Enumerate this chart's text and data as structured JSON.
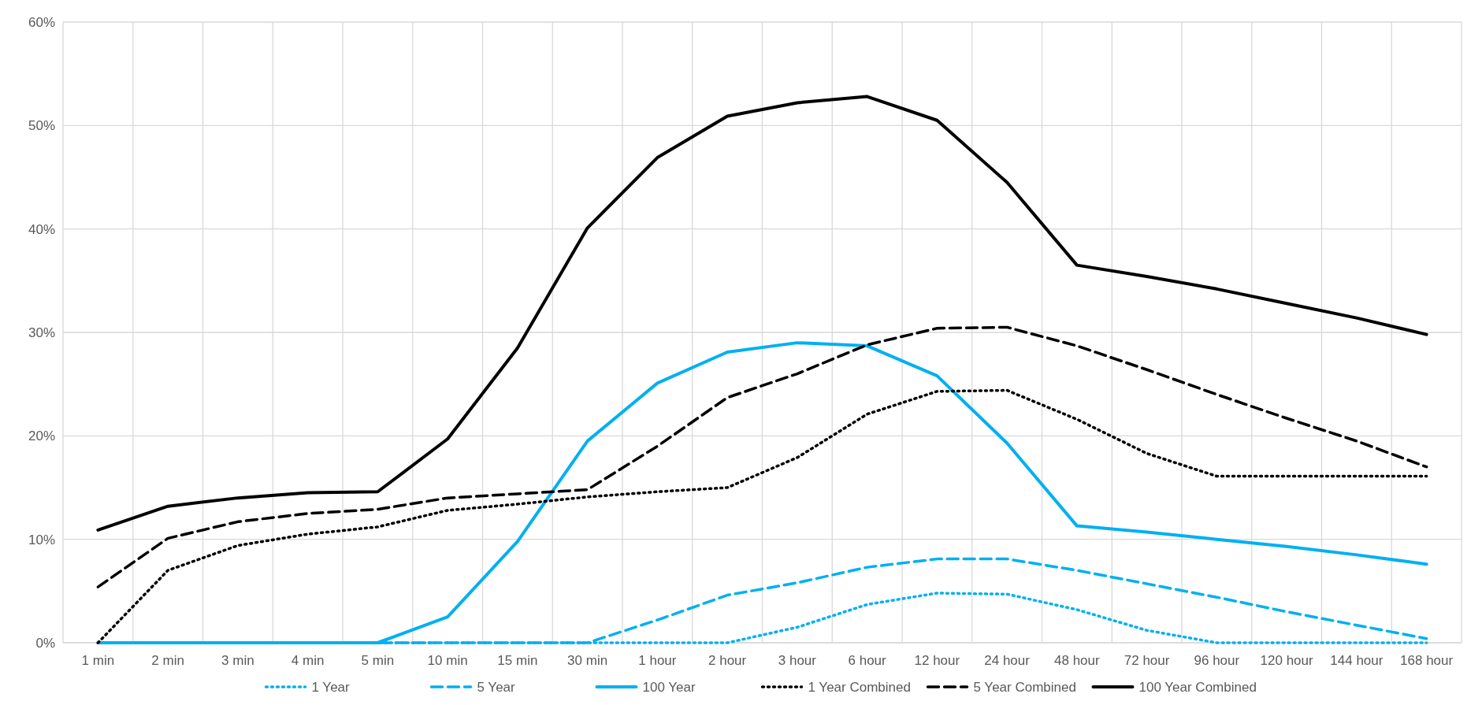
{
  "chart_data": {
    "type": "line",
    "categories": [
      "1 min",
      "2 min",
      "3 min",
      "4 min",
      "5 min",
      "10 min",
      "15 min",
      "30 min",
      "1 hour",
      "2 hour",
      "3 hour",
      "6 hour",
      "12 hour",
      "24 hour",
      "48 hour",
      "72 hour",
      "96 hour",
      "120 hour",
      "144 hour",
      "168 hour"
    ],
    "series": [
      {
        "name": "1 Year",
        "color": "#00b0f0",
        "line_style": "dotted",
        "values": [
          0,
          0,
          0,
          0,
          0,
          0,
          0,
          0,
          0,
          0,
          1.5,
          3.7,
          4.8,
          4.7,
          3.2,
          1.2,
          0,
          0,
          0,
          0
        ]
      },
      {
        "name": "5 Year",
        "color": "#00b0f0",
        "line_style": "dashed",
        "values": [
          0,
          0,
          0,
          0,
          0,
          0,
          0,
          0,
          2.2,
          4.6,
          5.8,
          7.3,
          8.1,
          8.1,
          7.0,
          5.7,
          4.4,
          3.0,
          1.7,
          0.4
        ]
      },
      {
        "name": "100 Year",
        "color": "#00b0f0",
        "line_style": "solid",
        "values": [
          0,
          0,
          0,
          0,
          0,
          2.5,
          9.8,
          19.5,
          25.1,
          28.1,
          29.0,
          28.7,
          25.8,
          19.3,
          11.3,
          10.7,
          10.0,
          9.3,
          8.5,
          7.6
        ]
      },
      {
        "name": "1 Year Combined",
        "color": "#000000",
        "line_style": "dotted",
        "values": [
          0,
          7.0,
          9.4,
          10.5,
          11.2,
          12.8,
          13.4,
          14.1,
          14.6,
          15.0,
          17.9,
          22.1,
          24.3,
          24.4,
          21.6,
          18.3,
          16.1,
          16.1,
          16.1,
          16.1
        ]
      },
      {
        "name": "5 Year Combined",
        "color": "#000000",
        "line_style": "dashed",
        "values": [
          5.4,
          10.1,
          11.7,
          12.5,
          12.9,
          14.0,
          14.4,
          14.8,
          19.0,
          23.7,
          26.0,
          28.8,
          30.4,
          30.5,
          28.7,
          26.4,
          24.0,
          21.7,
          19.5,
          17.0
        ]
      },
      {
        "name": "100 Year Combined",
        "color": "#000000",
        "line_style": "solid",
        "values": [
          10.9,
          13.2,
          14.0,
          14.5,
          14.6,
          19.7,
          28.5,
          40.1,
          46.9,
          50.9,
          52.2,
          52.8,
          50.5,
          44.5,
          36.5,
          35.4,
          34.2,
          32.8,
          31.4,
          29.8
        ]
      }
    ],
    "ylim": [
      0,
      60
    ],
    "yticks": [
      {
        "value": 0,
        "label": "0%"
      },
      {
        "value": 10,
        "label": "10%"
      },
      {
        "value": 20,
        "label": "20%"
      },
      {
        "value": 30,
        "label": "30%"
      },
      {
        "value": 40,
        "label": "40%"
      },
      {
        "value": 50,
        "label": "50%"
      },
      {
        "value": 60,
        "label": "60%"
      }
    ],
    "grid": true,
    "legend": "bottom",
    "marker": "none"
  }
}
